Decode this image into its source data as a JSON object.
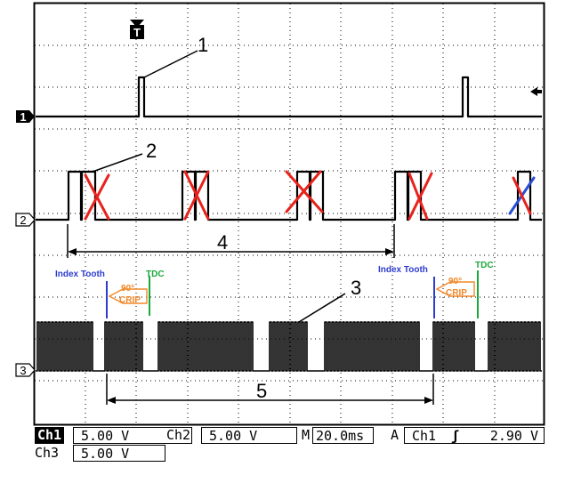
{
  "markers": {
    "trigger": "T",
    "ch1": "1",
    "ch2": "2",
    "ch3": "3"
  },
  "callouts": [
    "1",
    "2",
    "3",
    "4",
    "5"
  ],
  "annotations": {
    "index_tooth_left": "Index Tooth",
    "tdc_left": "TDC",
    "angle_left": "90°",
    "crip_left": "CRIP",
    "index_tooth_right": "Index Tooth",
    "tdc_right": "TDC",
    "angle_right": "90°",
    "crip_right": "CRIP"
  },
  "status": {
    "ch1_label": "Ch1",
    "ch1_scale": "5.00 V",
    "ch2_label": "Ch2",
    "ch2_scale": "5.00 V",
    "timebase_label": "M",
    "timebase": "20.0ms",
    "trigger_mode": "A",
    "trigger_channel": "Ch1",
    "trigger_level": "2.90 V",
    "ch3_label": "Ch3",
    "ch3_scale": "5.00 V"
  },
  "colors": {
    "trace": "#000000",
    "cross_red": "#e8221c",
    "cross_blue": "#2a4fd6",
    "index_blue": "#2d3ccf",
    "tdc_green": "#1aa83a",
    "crip_orange": "#f0882a"
  }
}
